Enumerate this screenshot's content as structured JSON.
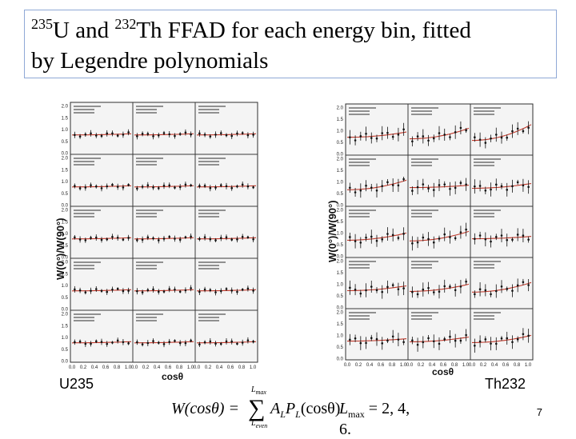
{
  "slide": {
    "title_line1_pre_u": "235",
    "title_line1_u": "U and ",
    "title_line1_pre_th": "232",
    "title_line1_th": "Th FFAD for each energy bin, fitted",
    "title_line2": "by Legendre polynomials",
    "page_number": "7"
  },
  "figures": {
    "left": {
      "caption": "U235",
      "ylabel": "W(0°)/W(90°)",
      "xlabel": "cosθ",
      "y_ticks": [
        "0.0",
        "0.5",
        "1.0",
        "1.5",
        "2.0"
      ],
      "x_ticks": [
        "0.0",
        "0.2",
        "0.4",
        "0.6",
        "0.8",
        "1.0"
      ]
    },
    "right": {
      "caption": "Th232",
      "ylabel": "W(0°)/W(90°)",
      "xlabel": "cosθ",
      "y_ticks": [
        "0.0",
        "0.5",
        "1.0",
        "1.5",
        "2.0"
      ],
      "x_ticks": [
        "0.0",
        "0.2",
        "0.4",
        "0.6",
        "0.8",
        "1.0"
      ]
    }
  },
  "formula": {
    "lhs": "W(cosθ) = ",
    "sum_top": "L",
    "sum_top_sub": "max",
    "sum_bottom": "L",
    "sum_bottom_sub": "even",
    "term": "A",
    "term_sub": "L",
    "term2": "P",
    "term2_sub": "L",
    "term_tail": "(cosθ)",
    "lmax_label": "L",
    "lmax_sub": "max",
    "lmax_values": " = 2, 4, 6."
  },
  "colors": {
    "fit_curve": "#c0392b",
    "data_points": "#111111",
    "title_border": "#8fa9d6"
  }
}
